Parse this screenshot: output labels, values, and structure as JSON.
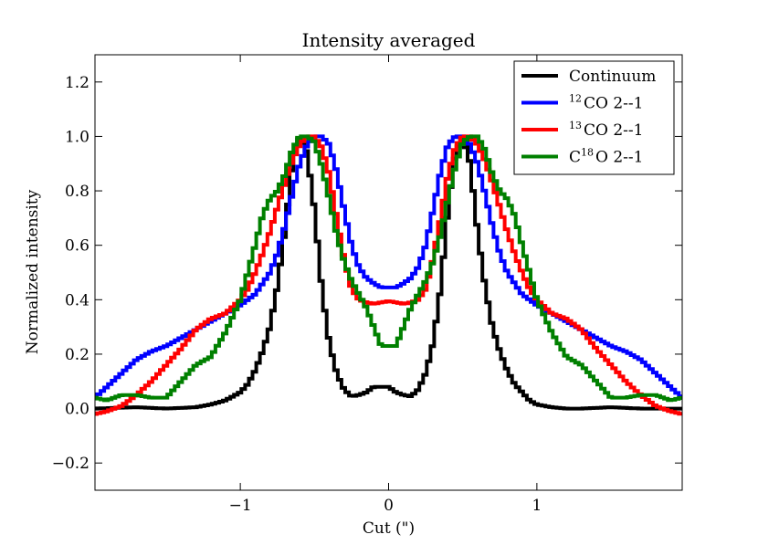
{
  "chart_data": {
    "type": "line",
    "title": "Intensity averaged",
    "xlabel": "Cut (\")",
    "ylabel": "Normalized intensity",
    "xlim": [
      -1.98,
      1.98
    ],
    "ylim": [
      -0.3,
      1.3
    ],
    "xticks": [
      -1,
      0,
      1
    ],
    "xtick_labels": [
      "−1",
      "0",
      "1"
    ],
    "yticks": [
      -0.2,
      0.0,
      0.2,
      0.4,
      0.6,
      0.8,
      1.0,
      1.2
    ],
    "ytick_labels": [
      "−0.2",
      "0.0",
      "0.2",
      "0.4",
      "0.6",
      "0.8",
      "1.0",
      "1.2"
    ],
    "grid": false,
    "legend_position": "top-right",
    "series": [
      {
        "name": "Continuum",
        "legend": {
          "pre": "",
          "sup": "",
          "post": "Continuum"
        },
        "color": "#000000",
        "x": [
          -1.98,
          -1.7,
          -1.5,
          -1.3,
          -1.2,
          -1.1,
          -1.0,
          -0.95,
          -0.9,
          -0.85,
          -0.8,
          -0.75,
          -0.7,
          -0.65,
          -0.6,
          -0.55,
          -0.5,
          -0.45,
          -0.4,
          -0.35,
          -0.3,
          -0.25,
          -0.2,
          -0.15,
          -0.1,
          -0.05,
          0.0,
          0.05,
          0.1,
          0.15,
          0.2,
          0.25,
          0.3,
          0.35,
          0.4,
          0.45,
          0.5,
          0.55,
          0.6,
          0.65,
          0.7,
          0.75,
          0.8,
          0.85,
          0.9,
          0.95,
          1.0,
          1.1,
          1.2,
          1.3,
          1.5,
          1.7,
          1.98
        ],
        "y": [
          0.0,
          0.005,
          0.0,
          0.005,
          0.015,
          0.03,
          0.06,
          0.09,
          0.14,
          0.21,
          0.3,
          0.45,
          0.65,
          0.9,
          1.0,
          0.94,
          0.73,
          0.44,
          0.24,
          0.13,
          0.07,
          0.045,
          0.05,
          0.06,
          0.08,
          0.08,
          0.08,
          0.06,
          0.05,
          0.045,
          0.07,
          0.13,
          0.24,
          0.44,
          0.73,
          0.94,
          1.0,
          0.9,
          0.65,
          0.45,
          0.3,
          0.21,
          0.14,
          0.09,
          0.06,
          0.03,
          0.015,
          0.005,
          0.0,
          0.0,
          0.005,
          0.0,
          0.0
        ]
      },
      {
        "name": "12CO 2--1",
        "legend": {
          "pre": "",
          "sup": "12",
          "post": "CO 2--1"
        },
        "color": "#0000ff",
        "x": [
          -1.98,
          -1.9,
          -1.8,
          -1.7,
          -1.6,
          -1.5,
          -1.4,
          -1.3,
          -1.2,
          -1.1,
          -1.0,
          -0.9,
          -0.8,
          -0.75,
          -0.7,
          -0.65,
          -0.6,
          -0.55,
          -0.5,
          -0.45,
          -0.4,
          -0.35,
          -0.3,
          -0.25,
          -0.2,
          -0.15,
          -0.1,
          -0.05,
          0.0,
          0.05,
          0.1,
          0.15,
          0.2,
          0.25,
          0.3,
          0.35,
          0.4,
          0.45,
          0.5,
          0.55,
          0.6,
          0.65,
          0.7,
          0.75,
          0.8,
          0.9,
          1.0,
          1.1,
          1.2,
          1.3,
          1.4,
          1.5,
          1.6,
          1.7,
          1.8,
          1.9,
          1.98
        ],
        "y": [
          0.04,
          0.08,
          0.13,
          0.18,
          0.21,
          0.23,
          0.26,
          0.29,
          0.32,
          0.35,
          0.38,
          0.42,
          0.5,
          0.57,
          0.67,
          0.79,
          0.9,
          0.97,
          1.0,
          1.0,
          0.97,
          0.87,
          0.73,
          0.6,
          0.52,
          0.48,
          0.46,
          0.445,
          0.445,
          0.445,
          0.46,
          0.48,
          0.52,
          0.6,
          0.73,
          0.87,
          0.97,
          1.0,
          1.0,
          0.97,
          0.9,
          0.79,
          0.67,
          0.57,
          0.5,
          0.42,
          0.38,
          0.35,
          0.32,
          0.29,
          0.26,
          0.23,
          0.21,
          0.18,
          0.13,
          0.08,
          0.04
        ]
      },
      {
        "name": "13CO 2--1",
        "legend": {
          "pre": "",
          "sup": "13",
          "post": "CO 2--1"
        },
        "color": "#ff0000",
        "x": [
          -1.98,
          -1.9,
          -1.8,
          -1.7,
          -1.6,
          -1.5,
          -1.4,
          -1.3,
          -1.2,
          -1.1,
          -1.0,
          -0.95,
          -0.9,
          -0.85,
          -0.8,
          -0.75,
          -0.7,
          -0.65,
          -0.6,
          -0.55,
          -0.5,
          -0.45,
          -0.4,
          -0.35,
          -0.3,
          -0.25,
          -0.2,
          -0.15,
          -0.1,
          -0.05,
          0.0,
          0.05,
          0.1,
          0.15,
          0.2,
          0.25,
          0.3,
          0.35,
          0.4,
          0.45,
          0.5,
          0.55,
          0.6,
          0.65,
          0.7,
          0.75,
          0.8,
          0.85,
          0.9,
          0.95,
          1.0,
          1.1,
          1.2,
          1.3,
          1.4,
          1.5,
          1.6,
          1.7,
          1.8,
          1.9,
          1.98
        ],
        "y": [
          -0.02,
          -0.01,
          0.01,
          0.05,
          0.1,
          0.16,
          0.22,
          0.29,
          0.33,
          0.35,
          0.4,
          0.44,
          0.5,
          0.57,
          0.65,
          0.74,
          0.83,
          0.91,
          0.97,
          1.0,
          1.0,
          0.96,
          0.86,
          0.7,
          0.55,
          0.44,
          0.4,
          0.39,
          0.385,
          0.39,
          0.395,
          0.39,
          0.385,
          0.39,
          0.4,
          0.44,
          0.55,
          0.7,
          0.86,
          0.96,
          1.0,
          1.0,
          0.97,
          0.91,
          0.83,
          0.74,
          0.65,
          0.57,
          0.5,
          0.44,
          0.4,
          0.35,
          0.33,
          0.29,
          0.22,
          0.16,
          0.1,
          0.05,
          0.01,
          -0.01,
          -0.02
        ]
      },
      {
        "name": "C18O 2--1",
        "legend": {
          "pre": "C",
          "sup": "18",
          "post": "O 2--1"
        },
        "color": "#008000",
        "x": [
          -1.98,
          -1.9,
          -1.8,
          -1.7,
          -1.6,
          -1.5,
          -1.4,
          -1.3,
          -1.2,
          -1.1,
          -1.0,
          -0.95,
          -0.9,
          -0.85,
          -0.8,
          -0.75,
          -0.7,
          -0.65,
          -0.6,
          -0.55,
          -0.5,
          -0.45,
          -0.4,
          -0.35,
          -0.3,
          -0.25,
          -0.2,
          -0.15,
          -0.1,
          -0.05,
          0.0,
          0.05,
          0.1,
          0.15,
          0.2,
          0.25,
          0.3,
          0.35,
          0.4,
          0.45,
          0.5,
          0.55,
          0.6,
          0.65,
          0.7,
          0.75,
          0.8,
          0.85,
          0.9,
          0.95,
          1.0,
          1.1,
          1.2,
          1.3,
          1.4,
          1.5,
          1.6,
          1.7,
          1.8,
          1.9,
          1.98
        ],
        "y": [
          0.04,
          0.03,
          0.05,
          0.05,
          0.04,
          0.04,
          0.1,
          0.16,
          0.19,
          0.28,
          0.4,
          0.5,
          0.6,
          0.71,
          0.77,
          0.8,
          0.86,
          0.95,
          1.0,
          1.0,
          0.98,
          0.89,
          0.77,
          0.64,
          0.54,
          0.47,
          0.42,
          0.37,
          0.3,
          0.23,
          0.23,
          0.23,
          0.3,
          0.37,
          0.42,
          0.47,
          0.54,
          0.64,
          0.77,
          0.89,
          0.98,
          1.0,
          1.0,
          0.95,
          0.86,
          0.8,
          0.77,
          0.71,
          0.6,
          0.5,
          0.4,
          0.28,
          0.19,
          0.16,
          0.1,
          0.04,
          0.04,
          0.05,
          0.05,
          0.03,
          0.04
        ]
      }
    ]
  }
}
